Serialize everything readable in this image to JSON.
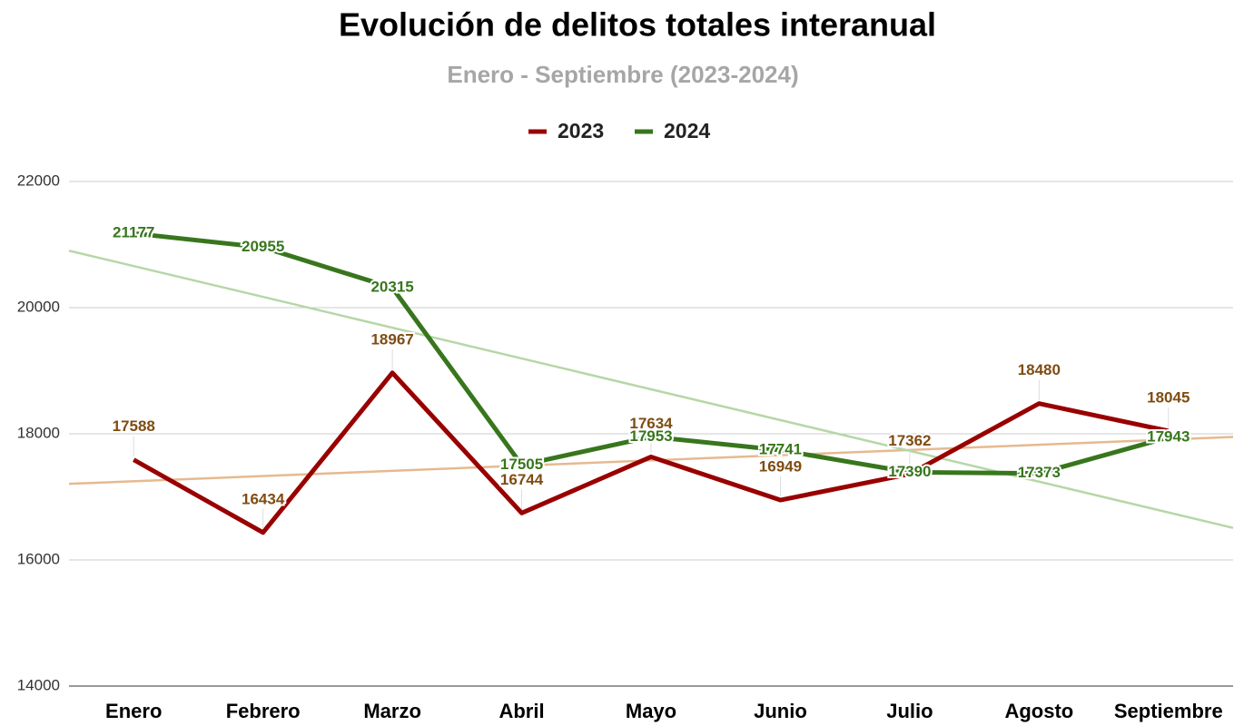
{
  "chart_data": {
    "type": "line",
    "title": "Evolución de delitos totales interanual",
    "subtitle": "Enero - Septiembre (2023-2024)",
    "categories": [
      "Enero",
      "Febrero",
      "Marzo",
      "Abril",
      "Mayo",
      "Junio",
      "Julio",
      "Agosto",
      "Septiembre"
    ],
    "series": [
      {
        "name": "2023",
        "color": "#990000",
        "label_color": "#7f4c12",
        "trendline_color": "#e6b990",
        "values": [
          17588,
          16434,
          18967,
          16744,
          17634,
          16949,
          17362,
          18480,
          18045
        ]
      },
      {
        "name": "2024",
        "color": "#38761d",
        "label_color": "#38761d",
        "trendline_color": "#b6d7a8",
        "values": [
          21177,
          20955,
          20315,
          17505,
          17953,
          17741,
          17390,
          17373,
          17943
        ]
      }
    ],
    "ylim": [
      14000,
      22000
    ],
    "yticks": [
      14000,
      16000,
      18000,
      20000,
      22000
    ],
    "grid": true,
    "trendline": true,
    "legend": "top"
  }
}
